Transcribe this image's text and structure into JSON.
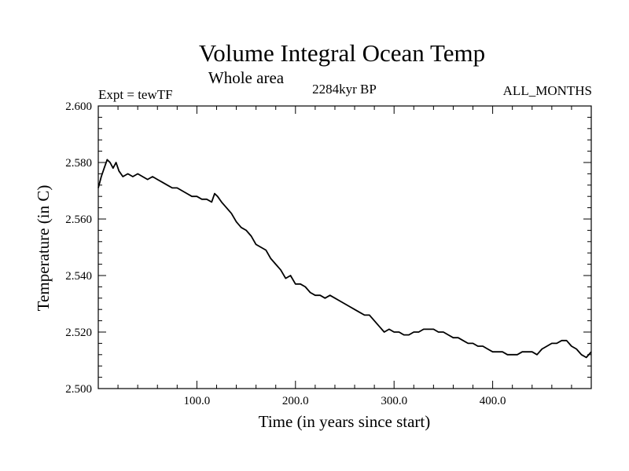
{
  "chart_data": {
    "type": "line",
    "title": "Volume Integral Ocean Temp",
    "subtitle": "Whole area",
    "annotations": {
      "left": "Expt = tewTF",
      "center": "2284kyr BP",
      "right": "ALL_MONTHS"
    },
    "xlabel": "Time (in years since start)",
    "ylabel": "Temperature (in C)",
    "xlim": [
      0,
      500
    ],
    "ylim": [
      2.5,
      2.6
    ],
    "x_ticks": [
      100,
      200,
      300,
      400
    ],
    "x_tick_labels": [
      "100.0",
      "200.0",
      "300.0",
      "400.0"
    ],
    "y_ticks": [
      2.5,
      2.52,
      2.54,
      2.56,
      2.58,
      2.6
    ],
    "y_tick_labels": [
      "2.500",
      "2.520",
      "2.540",
      "2.560",
      "2.580",
      "2.600"
    ],
    "grid": false,
    "series": [
      {
        "name": "Temperature",
        "color": "#000000",
        "x": [
          0,
          3,
          6,
          9,
          12,
          15,
          18,
          21,
          25,
          30,
          35,
          40,
          45,
          50,
          55,
          60,
          65,
          70,
          75,
          80,
          85,
          90,
          95,
          100,
          105,
          110,
          115,
          118,
          121,
          125,
          130,
          135,
          140,
          145,
          150,
          155,
          160,
          165,
          170,
          175,
          180,
          185,
          190,
          195,
          200,
          205,
          210,
          215,
          220,
          225,
          230,
          235,
          240,
          245,
          250,
          255,
          260,
          265,
          270,
          275,
          280,
          285,
          290,
          295,
          300,
          305,
          310,
          315,
          320,
          325,
          330,
          335,
          340,
          345,
          350,
          355,
          360,
          365,
          370,
          375,
          380,
          385,
          390,
          395,
          400,
          405,
          410,
          415,
          420,
          425,
          430,
          435,
          440,
          445,
          450,
          455,
          460,
          465,
          470,
          475,
          480,
          485,
          490,
          495,
          500
        ],
        "y": [
          2.571,
          2.575,
          2.578,
          2.581,
          2.58,
          2.578,
          2.58,
          2.577,
          2.575,
          2.576,
          2.575,
          2.576,
          2.575,
          2.574,
          2.575,
          2.574,
          2.573,
          2.572,
          2.571,
          2.571,
          2.57,
          2.569,
          2.568,
          2.568,
          2.567,
          2.567,
          2.566,
          2.569,
          2.568,
          2.566,
          2.564,
          2.562,
          2.559,
          2.557,
          2.556,
          2.554,
          2.551,
          2.55,
          2.549,
          2.546,
          2.544,
          2.542,
          2.539,
          2.54,
          2.537,
          2.537,
          2.536,
          2.534,
          2.533,
          2.533,
          2.532,
          2.533,
          2.532,
          2.531,
          2.53,
          2.529,
          2.528,
          2.527,
          2.526,
          2.526,
          2.524,
          2.522,
          2.52,
          2.521,
          2.52,
          2.52,
          2.519,
          2.519,
          2.52,
          2.52,
          2.521,
          2.521,
          2.521,
          2.52,
          2.52,
          2.519,
          2.518,
          2.518,
          2.517,
          2.516,
          2.516,
          2.515,
          2.515,
          2.514,
          2.513,
          2.513,
          2.513,
          2.512,
          2.512,
          2.512,
          2.513,
          2.513,
          2.513,
          2.512,
          2.514,
          2.515,
          2.516,
          2.516,
          2.517,
          2.517,
          2.515,
          2.514,
          2.512,
          2.511,
          2.513
        ]
      }
    ]
  }
}
